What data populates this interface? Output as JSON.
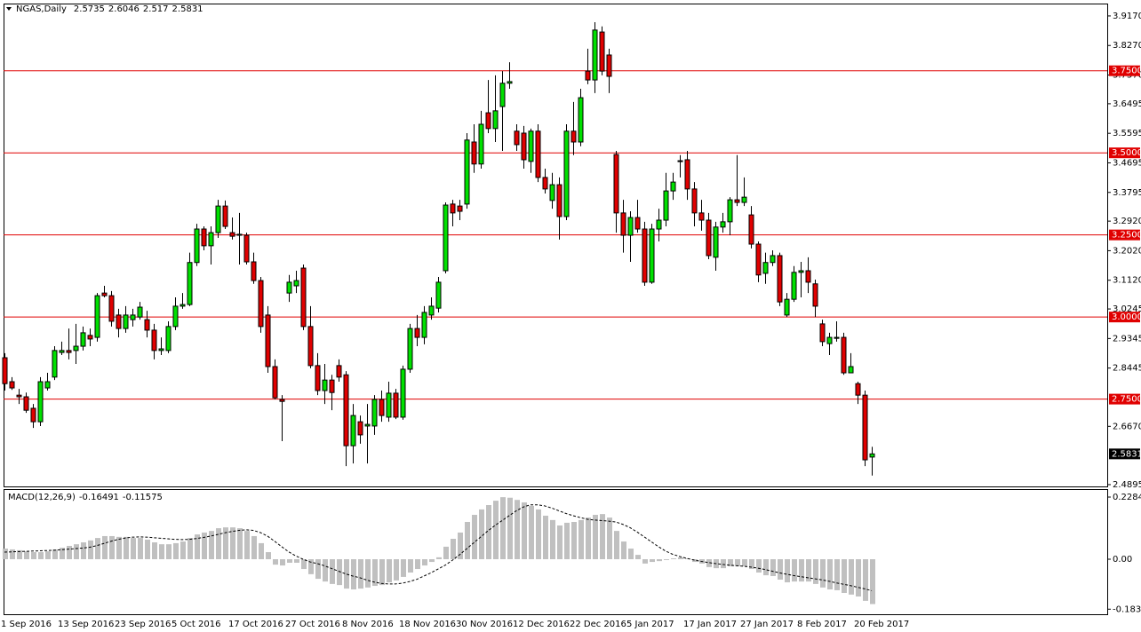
{
  "chart_data": [
    {
      "type": "candlestick",
      "title": "NGAS,Daily",
      "categories": [
        "1 Sep 2016",
        null,
        null,
        null,
        null,
        null,
        null,
        null,
        "13 Sep 2016",
        null,
        null,
        null,
        null,
        null,
        null,
        null,
        "23 Sep 2016",
        null,
        null,
        null,
        null,
        null,
        null,
        null,
        "5 Oct 2016",
        null,
        null,
        null,
        null,
        null,
        null,
        null,
        "17 Oct 2016",
        null,
        null,
        null,
        null,
        null,
        null,
        null,
        "27 Oct 2016",
        null,
        null,
        null,
        null,
        null,
        null,
        null,
        "8 Nov 2016",
        null,
        null,
        null,
        null,
        null,
        null,
        null,
        "18 Nov 2016",
        null,
        null,
        null,
        null,
        null,
        null,
        null,
        "30 Nov 2016",
        null,
        null,
        null,
        null,
        null,
        null,
        null,
        "12 Dec 2016",
        null,
        null,
        null,
        null,
        null,
        null,
        null,
        "22 Dec 2016",
        null,
        null,
        null,
        null,
        null,
        null,
        null,
        "5 Jan 2017",
        null,
        null,
        null,
        null,
        null,
        null,
        null,
        "17 Jan 2017",
        null,
        null,
        null,
        null,
        null,
        null,
        null,
        "27 Jan 2017",
        null,
        null,
        null,
        null,
        null,
        null,
        null,
        "8 Feb 2017",
        null,
        null,
        null,
        null,
        null,
        null,
        null,
        "20 Feb 2017",
        null,
        null
      ],
      "open": [
        2.876,
        2.803,
        2.762,
        2.757,
        2.722,
        2.681,
        2.784,
        2.817,
        2.892,
        2.898,
        2.898,
        2.911,
        2.944,
        2.938,
        3.073,
        3.065,
        3.006,
        2.965,
        2.992,
        3.0,
        2.992,
        2.96,
        2.898,
        2.898,
        2.971,
        3.033,
        3.038,
        3.166,
        3.268,
        3.217,
        3.257,
        3.338,
        3.257,
        3.249,
        3.249,
        3.168,
        3.111,
        3.006,
        2.849,
        2.749,
        3.073,
        3.095,
        3.149,
        2.971,
        2.852,
        2.776,
        2.808,
        2.852,
        2.824,
        2.608,
        2.681,
        2.668,
        2.668,
        2.749,
        2.695,
        2.768,
        2.695,
        2.841,
        2.965,
        2.938,
        3.006,
        3.027,
        3.141,
        3.344,
        3.338,
        3.344,
        3.533,
        3.466,
        3.622,
        3.574,
        3.641,
        3.712,
        3.566,
        3.56,
        3.474,
        3.566,
        3.425,
        3.355,
        3.403,
        3.306,
        3.566,
        3.533,
        3.749,
        3.722,
        3.868,
        3.798,
        3.495,
        3.317,
        3.249,
        3.303,
        3.268,
        3.106,
        3.268,
        3.295,
        3.384,
        3.476,
        3.479,
        3.39,
        3.317,
        3.295,
        3.182,
        3.274,
        3.29,
        3.357,
        3.349,
        3.311,
        3.222,
        3.133,
        3.166,
        3.187,
        3.006,
        3.054,
        3.136,
        3.141,
        3.101,
        2.979,
        2.919,
        2.935,
        2.938,
        2.83,
        2.797,
        2.762,
        2.5735
      ],
      "high": [
        2.89,
        2.817,
        2.781,
        2.77,
        2.735,
        2.817,
        2.83,
        2.911,
        2.925,
        2.965,
        2.979,
        2.971,
        2.965,
        3.073,
        3.095,
        3.079,
        3.025,
        3.033,
        3.025,
        3.046,
        3.019,
        2.979,
        2.938,
        2.987,
        3.06,
        3.073,
        3.196,
        3.284,
        3.276,
        3.276,
        3.357,
        3.355,
        3.303,
        3.317,
        3.257,
        3.196,
        3.122,
        3.033,
        2.871,
        2.762,
        3.128,
        3.141,
        3.16,
        3.033,
        2.89,
        2.857,
        2.824,
        2.871,
        2.835,
        2.735,
        2.7,
        2.735,
        2.762,
        2.776,
        2.803,
        2.781,
        2.852,
        2.979,
        3.006,
        3.033,
        3.06,
        3.122,
        3.349,
        3.357,
        3.357,
        3.56,
        3.587,
        3.628,
        3.722,
        3.736,
        3.749,
        3.776,
        3.587,
        3.582,
        3.574,
        3.587,
        3.452,
        3.439,
        3.425,
        3.587,
        3.655,
        3.695,
        3.817,
        3.898,
        3.885,
        3.817,
        3.506,
        3.357,
        3.322,
        3.357,
        3.29,
        3.284,
        3.33,
        3.439,
        3.439,
        3.493,
        3.506,
        3.411,
        3.357,
        3.317,
        3.29,
        3.317,
        3.365,
        3.493,
        3.425,
        3.338,
        3.23,
        3.196,
        3.203,
        3.196,
        3.073,
        3.155,
        3.168,
        3.182,
        3.114,
        2.992,
        2.952,
        2.987,
        2.952,
        2.89,
        2.803,
        2.776,
        2.6046
      ],
      "low": [
        2.776,
        2.778,
        2.735,
        2.708,
        2.662,
        2.668,
        2.776,
        2.808,
        2.884,
        2.871,
        2.857,
        2.898,
        2.911,
        2.925,
        3.06,
        2.971,
        2.938,
        2.952,
        2.971,
        2.992,
        2.938,
        2.871,
        2.884,
        2.89,
        2.96,
        3.025,
        3.033,
        3.155,
        3.203,
        3.16,
        3.241,
        3.268,
        3.236,
        3.16,
        3.16,
        3.101,
        2.952,
        2.83,
        2.749,
        2.622,
        3.046,
        3.073,
        2.96,
        2.844,
        2.762,
        2.735,
        2.716,
        2.803,
        2.546,
        2.554,
        2.614,
        2.554,
        2.641,
        2.681,
        2.681,
        2.689,
        2.687,
        2.83,
        2.911,
        2.917,
        2.992,
        3.014,
        3.133,
        3.276,
        3.295,
        3.33,
        3.439,
        3.452,
        3.56,
        3.533,
        3.506,
        3.695,
        3.506,
        3.452,
        3.439,
        3.411,
        3.376,
        3.33,
        3.236,
        3.295,
        3.493,
        3.52,
        3.709,
        3.682,
        3.736,
        3.682,
        3.257,
        3.196,
        3.168,
        3.257,
        3.095,
        3.101,
        3.23,
        3.276,
        3.357,
        3.425,
        3.357,
        3.276,
        3.263,
        3.176,
        3.141,
        3.257,
        3.249,
        3.338,
        3.338,
        3.209,
        3.106,
        3.101,
        3.155,
        3.033,
        3.0,
        3.046,
        3.06,
        3.073,
        3.0,
        2.911,
        2.884,
        2.925,
        2.824,
        2.83,
        2.735,
        2.546,
        2.517
      ],
      "close": [
        2.797,
        2.784,
        2.757,
        2.716,
        2.681,
        2.803,
        2.803,
        2.898,
        2.898,
        2.892,
        2.911,
        2.952,
        2.933,
        3.065,
        3.065,
        2.987,
        2.965,
        3.006,
        3.006,
        3.03,
        2.96,
        2.898,
        2.903,
        2.971,
        3.033,
        3.038,
        3.166,
        3.268,
        3.217,
        3.257,
        3.338,
        3.276,
        3.246,
        3.252,
        3.168,
        3.111,
        2.971,
        2.849,
        2.754,
        2.743,
        3.106,
        3.111,
        2.971,
        2.852,
        2.776,
        2.808,
        2.77,
        2.817,
        2.608,
        2.7,
        2.641,
        2.673,
        2.749,
        2.7,
        2.768,
        2.695,
        2.841,
        2.965,
        2.938,
        3.014,
        3.033,
        3.106,
        3.341,
        3.317,
        3.322,
        3.539,
        3.466,
        3.587,
        3.574,
        3.628,
        3.712,
        3.717,
        3.525,
        3.479,
        3.566,
        3.425,
        3.39,
        3.403,
        3.306,
        3.566,
        3.533,
        3.668,
        3.722,
        3.874,
        3.749,
        3.733,
        3.317,
        3.249,
        3.303,
        3.268,
        3.106,
        3.268,
        3.295,
        3.384,
        3.411,
        3.474,
        3.39,
        3.317,
        3.295,
        3.187,
        3.274,
        3.29,
        3.357,
        3.349,
        3.365,
        3.222,
        3.128,
        3.166,
        3.187,
        3.046,
        3.054,
        3.136,
        3.141,
        3.106,
        3.033,
        2.925,
        2.938,
        2.938,
        2.83,
        2.849,
        2.762,
        2.565,
        2.5831
      ],
      "up_color": "#00e000",
      "down_color": "#e00000",
      "ylim": [
        2.484,
        3.952
      ],
      "yticks": [
        {
          "value": 3.917,
          "label": "3.9170"
        },
        {
          "value": 3.827,
          "label": "3.8270"
        },
        {
          "value": 3.737,
          "label": "3.7370"
        },
        3.6495,
        3.5595,
        3.4695,
        3.3795,
        {
          "value": 3.292,
          "label": "3.2920"
        },
        {
          "value": 3.202,
          "label": "3.2020"
        },
        {
          "value": 3.112,
          "label": "3.1120"
        },
        3.0245,
        2.9345,
        2.8445,
        {
          "value": 2.667,
          "label": "2.6670"
        },
        2.4895
      ],
      "hlines": [
        {
          "value": 3.75,
          "label": "3.7500"
        },
        {
          "value": 3.5,
          "label": "3.5000"
        },
        {
          "value": 3.25,
          "label": "3.2500"
        },
        {
          "value": 3,
          "label": "3.0000"
        },
        {
          "value": 2.75,
          "label": "2.7500"
        }
      ],
      "hline_color": "#e00000",
      "grid": false
    },
    {
      "type": "macd",
      "title": "MACD(12,26,9)",
      "histogram": [
        0.039,
        0.036,
        0.033,
        0.029,
        0.026,
        0.026,
        0.029,
        0.036,
        0.042,
        0.049,
        0.055,
        0.062,
        0.069,
        0.078,
        0.085,
        0.085,
        0.082,
        0.082,
        0.078,
        0.078,
        0.072,
        0.062,
        0.055,
        0.055,
        0.059,
        0.065,
        0.078,
        0.091,
        0.098,
        0.104,
        0.114,
        0.117,
        0.117,
        0.114,
        0.104,
        0.085,
        0.059,
        0.026,
        -0.02,
        -0.023,
        -0.013,
        -0.013,
        -0.036,
        -0.055,
        -0.072,
        -0.082,
        -0.091,
        -0.095,
        -0.108,
        -0.111,
        -0.108,
        -0.104,
        -0.098,
        -0.095,
        -0.085,
        -0.078,
        -0.065,
        -0.049,
        -0.036,
        -0.023,
        -0.01,
        0.007,
        0.046,
        0.075,
        0.098,
        0.137,
        0.163,
        0.183,
        0.199,
        0.215,
        0.228,
        0.226,
        0.218,
        0.209,
        0.196,
        0.183,
        0.16,
        0.144,
        0.124,
        0.134,
        0.137,
        0.144,
        0.153,
        0.163,
        0.166,
        0.153,
        0.104,
        0.065,
        0.039,
        0.016,
        -0.016,
        -0.01,
        -0.007,
        -0.003,
        0.003,
        0.007,
        0.003,
        -0.01,
        -0.016,
        -0.029,
        -0.033,
        -0.033,
        -0.026,
        -0.026,
        -0.026,
        -0.036,
        -0.049,
        -0.059,
        -0.062,
        -0.075,
        -0.085,
        -0.082,
        -0.082,
        -0.082,
        -0.091,
        -0.104,
        -0.111,
        -0.114,
        -0.124,
        -0.13,
        -0.137,
        -0.153,
        -0.16491
      ],
      "signal": [
        0.026,
        0.027,
        0.028,
        0.029,
        0.03,
        0.031,
        0.032,
        0.033,
        0.035,
        0.037,
        0.039,
        0.041,
        0.044,
        0.05,
        0.058,
        0.066,
        0.073,
        0.078,
        0.081,
        0.082,
        0.081,
        0.079,
        0.077,
        0.075,
        0.073,
        0.072,
        0.073,
        0.076,
        0.08,
        0.085,
        0.091,
        0.097,
        0.102,
        0.106,
        0.108,
        0.106,
        0.098,
        0.085,
        0.066,
        0.046,
        0.027,
        0.012,
        0.0,
        -0.01,
        -0.016,
        -0.024,
        -0.034,
        -0.044,
        -0.054,
        -0.062,
        -0.068,
        -0.077,
        -0.084,
        -0.089,
        -0.091,
        -0.091,
        -0.088,
        -0.082,
        -0.074,
        -0.062,
        -0.05,
        -0.036,
        -0.022,
        -0.004,
        0.016,
        0.038,
        0.06,
        0.082,
        0.104,
        0.124,
        0.142,
        0.16,
        0.178,
        0.192,
        0.2,
        0.2,
        0.196,
        0.188,
        0.178,
        0.168,
        0.16,
        0.153,
        0.147,
        0.144,
        0.142,
        0.14,
        0.137,
        0.128,
        0.116,
        0.1,
        0.082,
        0.064,
        0.046,
        0.03,
        0.018,
        0.01,
        0.003,
        -0.003,
        -0.008,
        -0.012,
        -0.016,
        -0.019,
        -0.022,
        -0.024,
        -0.026,
        -0.029,
        -0.033,
        -0.038,
        -0.044,
        -0.05,
        -0.055,
        -0.06,
        -0.064,
        -0.068,
        -0.072,
        -0.076,
        -0.081,
        -0.087,
        -0.092,
        -0.097,
        -0.103,
        -0.109,
        -0.11575
      ],
      "color": "#c0c0c0",
      "signal_color": "#000000",
      "ylim": [
        -0.2023,
        0.2545
      ],
      "yticks": [
        0.22844,
        {
          "value": 0,
          "label": "0.00"
        },
        -0.18364
      ]
    }
  ]
}
